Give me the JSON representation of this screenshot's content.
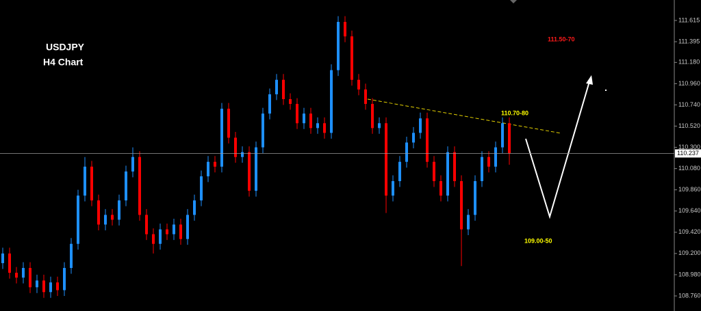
{
  "chart_data": {
    "type": "candlestick",
    "title": "USDJPY",
    "subtitle": "H4 Chart",
    "annotations": [
      {
        "text": "111.50-70",
        "color": "#ff1a1a"
      },
      {
        "text": "110.70-80",
        "color": "#ffff00"
      },
      {
        "text": "109.00-50",
        "color": "#ffff00"
      }
    ],
    "up_color": "#1e90ff",
    "down_color": "#ff0000",
    "ylim": [
      108.604,
      111.827
    ],
    "yticks": [
      111.615,
      111.395,
      {
        "value": 111.18,
        "label": "111.180"
      },
      {
        "value": 110.96,
        "label": "110.960"
      },
      {
        "value": 110.74,
        "label": "110.740"
      },
      {
        "value": 110.52,
        "label": "110.520"
      },
      {
        "value": 110.3,
        "label": "110.300"
      },
      {
        "value": 110.08,
        "label": "110.080"
      },
      {
        "value": 109.86,
        "label": "109.860"
      },
      {
        "value": 109.64,
        "label": "109.640"
      },
      {
        "value": 109.42,
        "label": "109.420"
      },
      {
        "value": 109.2,
        "label": "109.200"
      },
      {
        "value": 108.98,
        "label": "108.980"
      },
      {
        "value": 108.76,
        "label": "108.760"
      }
    ],
    "last_price": 110.237,
    "series": [
      {
        "open": [
          109.1,
          109.2,
          109.0,
          108.95,
          109.05,
          108.85,
          108.92,
          108.8,
          108.9,
          108.82,
          109.05,
          109.3,
          109.8,
          110.1,
          109.75,
          109.5,
          109.6,
          109.55,
          109.75,
          110.05,
          110.2,
          109.6,
          109.4,
          109.3,
          109.45,
          109.4,
          109.5,
          109.35,
          109.6,
          109.75,
          110.0,
          110.15,
          110.1,
          110.7,
          110.4,
          110.2,
          110.25,
          109.85,
          110.3,
          110.65,
          110.85,
          111.0,
          110.8,
          110.75,
          110.55,
          110.65,
          110.5,
          110.55,
          110.45,
          111.1,
          111.6,
          111.45,
          111.0,
          110.9,
          110.75,
          110.5,
          110.55,
          109.8,
          109.95,
          110.15,
          110.35,
          110.45,
          110.6,
          110.15,
          109.95,
          109.8,
          110.25,
          109.95,
          109.45,
          109.6,
          109.95,
          110.2,
          110.1,
          110.3,
          110.55
        ],
        "high": [
          109.26,
          109.26,
          109.06,
          109.11,
          109.11,
          108.98,
          108.98,
          108.96,
          108.96,
          109.11,
          109.36,
          109.86,
          110.2,
          110.16,
          109.81,
          109.66,
          109.66,
          109.81,
          110.11,
          110.3,
          110.26,
          109.66,
          109.46,
          109.51,
          109.51,
          109.56,
          109.56,
          109.66,
          109.81,
          110.06,
          110.21,
          110.21,
          110.76,
          110.76,
          110.46,
          110.31,
          110.31,
          110.36,
          110.71,
          110.91,
          111.06,
          111.06,
          110.86,
          110.81,
          110.71,
          110.71,
          110.61,
          110.61,
          111.16,
          111.66,
          111.66,
          111.51,
          111.06,
          110.96,
          110.81,
          110.61,
          110.61,
          110.01,
          110.21,
          110.41,
          110.51,
          110.66,
          110.66,
          110.21,
          110.01,
          110.31,
          110.31,
          110.01,
          109.66,
          110.01,
          110.26,
          110.26,
          110.36,
          110.61,
          110.61
        ],
        "low": [
          109.04,
          108.94,
          108.89,
          108.89,
          108.79,
          108.79,
          108.74,
          108.74,
          108.76,
          108.76,
          108.99,
          109.24,
          109.74,
          109.69,
          109.44,
          109.44,
          109.49,
          109.49,
          109.69,
          109.99,
          109.54,
          109.34,
          109.2,
          109.24,
          109.34,
          109.34,
          109.29,
          109.29,
          109.54,
          109.69,
          109.94,
          110.04,
          110.04,
          110.34,
          110.14,
          110.14,
          109.79,
          109.79,
          110.24,
          110.59,
          110.79,
          110.74,
          110.69,
          110.49,
          110.49,
          110.44,
          110.44,
          110.39,
          110.39,
          111.04,
          111.39,
          110.94,
          110.84,
          110.69,
          110.44,
          110.44,
          109.62,
          109.74,
          109.89,
          110.09,
          110.29,
          110.39,
          110.09,
          109.89,
          109.74,
          109.74,
          109.89,
          109.07,
          109.39,
          109.54,
          109.89,
          110.04,
          110.04,
          110.24,
          110.12
        ],
        "close": [
          109.2,
          109.0,
          108.95,
          109.05,
          108.85,
          108.92,
          108.8,
          108.9,
          108.82,
          109.05,
          109.3,
          109.8,
          110.1,
          109.75,
          109.5,
          109.6,
          109.55,
          109.75,
          110.05,
          110.2,
          109.6,
          109.4,
          109.3,
          109.45,
          109.4,
          109.5,
          109.35,
          109.6,
          109.75,
          110.0,
          110.15,
          110.1,
          110.7,
          110.4,
          110.2,
          110.25,
          109.85,
          110.3,
          110.65,
          110.85,
          111.0,
          110.8,
          110.75,
          110.55,
          110.65,
          110.5,
          110.55,
          110.45,
          111.1,
          111.6,
          111.45,
          111.0,
          110.9,
          110.75,
          110.5,
          110.55,
          109.8,
          109.95,
          110.15,
          110.35,
          110.45,
          110.6,
          110.15,
          109.95,
          109.8,
          110.25,
          109.95,
          109.45,
          109.6,
          109.95,
          110.2,
          110.1,
          110.3,
          110.55,
          110.24
        ]
      }
    ]
  }
}
